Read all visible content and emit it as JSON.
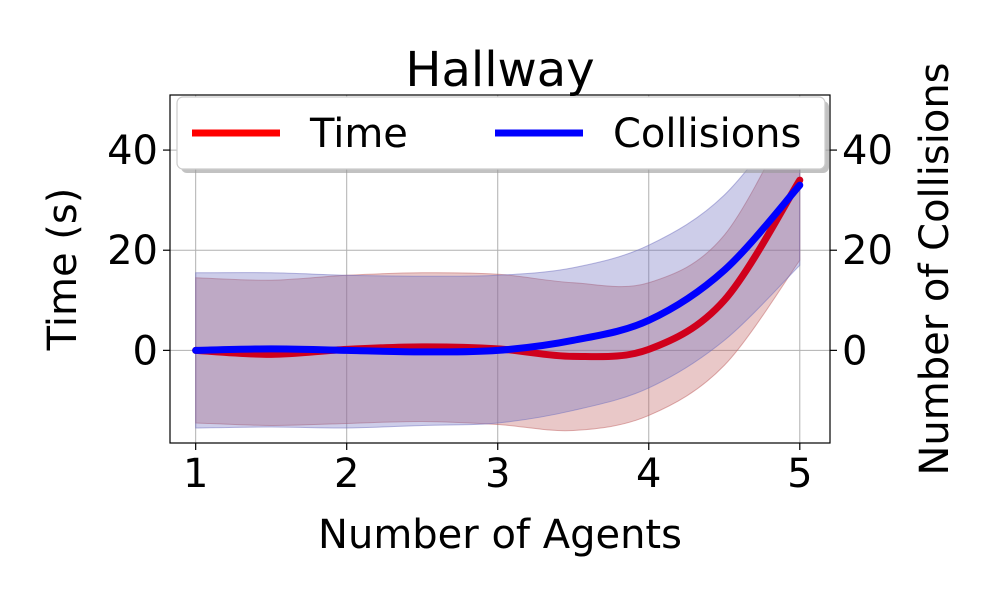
{
  "chart_data": {
    "type": "line",
    "title": "Hallway",
    "xlabel": "Number of Agents",
    "ylabel": "Time (s)",
    "y2label": "Number of Collisions",
    "xlim": [
      0.83,
      5.2
    ],
    "ylim": [
      -18.5,
      51
    ],
    "y2lim": [
      -18.5,
      51
    ],
    "xticks": [
      1,
      2,
      3,
      4,
      5
    ],
    "yticks": [
      0,
      20,
      40
    ],
    "y2ticks": [
      0,
      20,
      40
    ],
    "grid": true,
    "legend_position": "top",
    "series": [
      {
        "name": "Time",
        "axis": "left",
        "color": "#ff0000",
        "line_color": "#d0001c",
        "band_color": "#c06060",
        "x": [
          1.0,
          1.5,
          2.0,
          2.5,
          3.0,
          3.5,
          4.0,
          4.5,
          5.0
        ],
        "y": [
          0.0,
          -0.8,
          0.2,
          0.7,
          0.3,
          -1.2,
          0.2,
          10.0,
          34.0
        ],
        "lower": [
          -14.5,
          -15.0,
          -14.6,
          -14.2,
          -14.8,
          -16.0,
          -13.0,
          -3.0,
          18.0
        ],
        "upper": [
          14.5,
          14.0,
          15.0,
          15.5,
          15.2,
          13.5,
          13.5,
          23.0,
          50.0
        ]
      },
      {
        "name": "Collisions",
        "axis": "right",
        "color": "#0000ff",
        "line_color": "#0000ff",
        "band_color": "#7070c0",
        "x": [
          1.0,
          1.5,
          2.0,
          2.5,
          3.0,
          3.5,
          4.0,
          4.5,
          5.0
        ],
        "y": [
          0.0,
          0.3,
          0.0,
          -0.3,
          0.0,
          2.0,
          6.0,
          16.0,
          33.0
        ],
        "lower": [
          -15.5,
          -15.3,
          -15.5,
          -15.0,
          -14.5,
          -12.0,
          -7.5,
          2.0,
          17.0
        ],
        "upper": [
          15.5,
          15.5,
          15.0,
          14.8,
          15.0,
          16.5,
          21.0,
          31.0,
          50.0
        ]
      }
    ]
  }
}
